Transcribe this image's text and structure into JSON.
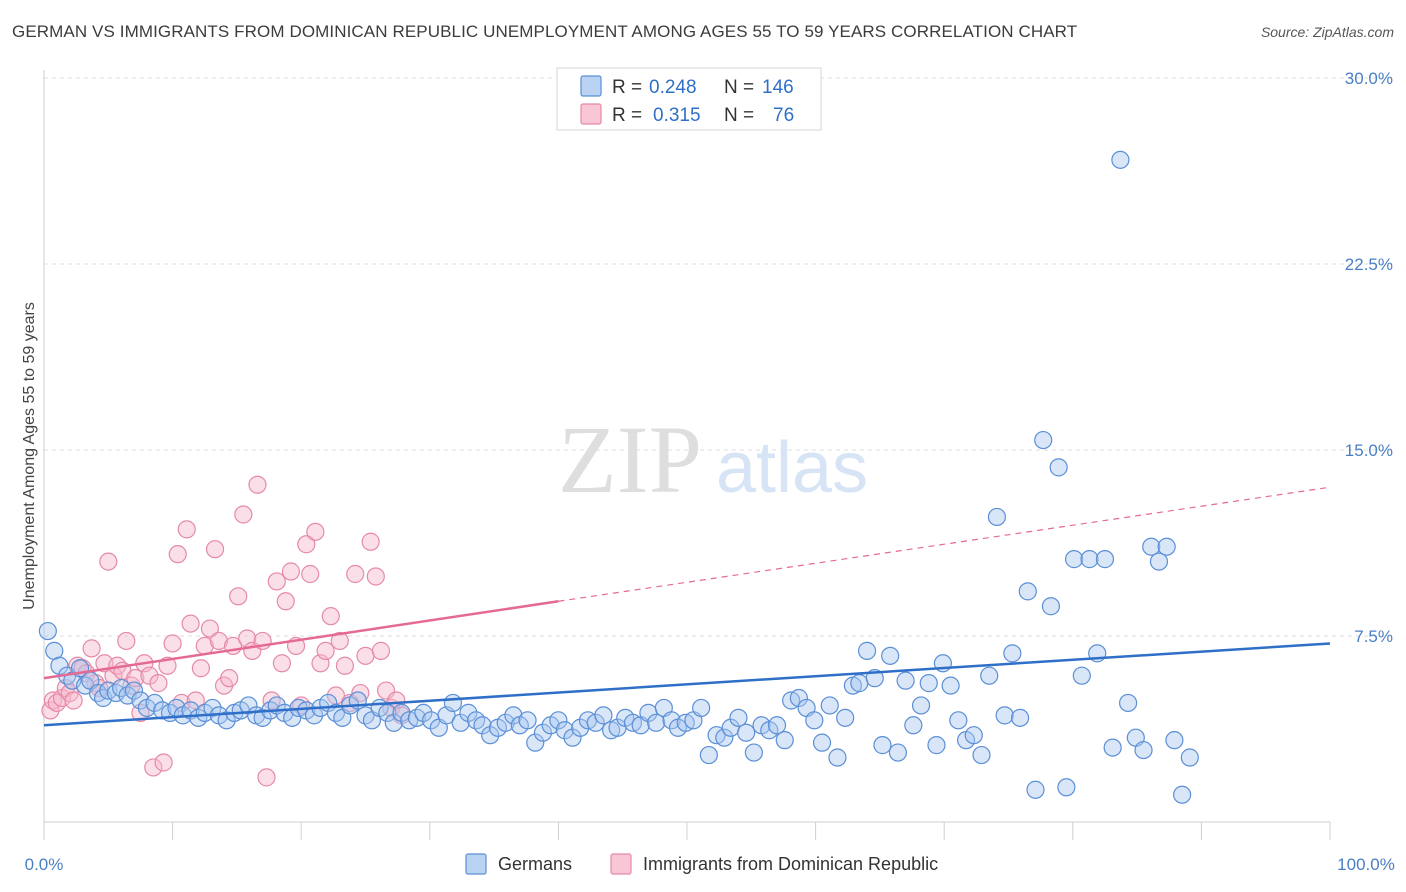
{
  "title": "GERMAN VS IMMIGRANTS FROM DOMINICAN REPUBLIC UNEMPLOYMENT AMONG AGES 55 TO 59 YEARS CORRELATION CHART",
  "source": "Source: ZipAtlas.com",
  "watermark": {
    "zip": "ZIP",
    "atlas": "atlas"
  },
  "colors": {
    "blue_fill": "#a9c8f0",
    "blue_stroke": "#5b8fd6",
    "blue_line": "#2f6fc8",
    "pink_fill": "#f6b8cb",
    "pink_stroke": "#e58aa7",
    "pink_line": "#e56a93",
    "axis_label": "#4a7fc4",
    "grid": "#dddddd"
  },
  "legend": {
    "r_label": "R =",
    "n_label": "N =",
    "items": [
      {
        "r": "0.248",
        "n": "146"
      },
      {
        "r": "0.315",
        "n": "76"
      }
    ]
  },
  "bottom_legend": [
    "Germans",
    "Immigrants from Dominican Republic"
  ],
  "chart_data": {
    "type": "scatter",
    "xlabel": "",
    "ylabel": "Unemployment Among Ages 55 to 59 years",
    "xlim": [
      0,
      100
    ],
    "ylim": [
      0,
      30
    ],
    "x_tick_labels": [
      "0.0%",
      "100.0%"
    ],
    "y_ticks": [
      7.5,
      15.0,
      22.5,
      30.0
    ],
    "y_tick_labels": [
      "7.5%",
      "15.0%",
      "22.5%",
      "30.0%"
    ],
    "grid": true,
    "series": [
      {
        "name": "Germans",
        "trend": {
          "x": [
            0,
            100
          ],
          "y": [
            3.9,
            7.2
          ],
          "dashed_x": null
        },
        "points": [
          [
            0.3,
            7.7
          ],
          [
            0.8,
            6.9
          ],
          [
            1.2,
            6.3
          ],
          [
            1.8,
            5.9
          ],
          [
            2.2,
            5.7
          ],
          [
            2.8,
            6.2
          ],
          [
            3.2,
            5.5
          ],
          [
            3.6,
            5.7
          ],
          [
            4.2,
            5.2
          ],
          [
            4.6,
            5.0
          ],
          [
            5.0,
            5.3
          ],
          [
            5.6,
            5.2
          ],
          [
            6.0,
            5.4
          ],
          [
            6.5,
            5.1
          ],
          [
            7.0,
            5.3
          ],
          [
            7.5,
            4.9
          ],
          [
            8.0,
            4.6
          ],
          [
            8.6,
            4.8
          ],
          [
            9.2,
            4.5
          ],
          [
            9.8,
            4.4
          ],
          [
            10.3,
            4.6
          ],
          [
            10.8,
            4.3
          ],
          [
            11.4,
            4.5
          ],
          [
            12.0,
            4.2
          ],
          [
            12.5,
            4.4
          ],
          [
            13.1,
            4.6
          ],
          [
            13.6,
            4.3
          ],
          [
            14.2,
            4.1
          ],
          [
            14.8,
            4.4
          ],
          [
            15.3,
            4.5
          ],
          [
            15.9,
            4.7
          ],
          [
            16.5,
            4.3
          ],
          [
            17.0,
            4.2
          ],
          [
            17.6,
            4.5
          ],
          [
            18.1,
            4.7
          ],
          [
            18.7,
            4.4
          ],
          [
            19.3,
            4.2
          ],
          [
            19.8,
            4.6
          ],
          [
            20.4,
            4.5
          ],
          [
            21.0,
            4.3
          ],
          [
            21.5,
            4.6
          ],
          [
            22.1,
            4.8
          ],
          [
            22.7,
            4.4
          ],
          [
            23.2,
            4.2
          ],
          [
            23.8,
            4.7
          ],
          [
            24.4,
            4.9
          ],
          [
            25.0,
            4.3
          ],
          [
            25.5,
            4.1
          ],
          [
            26.1,
            4.6
          ],
          [
            26.7,
            4.4
          ],
          [
            27.2,
            4.0
          ],
          [
            27.8,
            4.4
          ],
          [
            28.4,
            4.1
          ],
          [
            29.0,
            4.2
          ],
          [
            29.5,
            4.4
          ],
          [
            30.1,
            4.1
          ],
          [
            30.7,
            3.8
          ],
          [
            31.3,
            4.3
          ],
          [
            31.8,
            4.8
          ],
          [
            32.4,
            4.0
          ],
          [
            33.0,
            4.4
          ],
          [
            33.6,
            4.1
          ],
          [
            34.1,
            3.9
          ],
          [
            34.7,
            3.5
          ],
          [
            35.3,
            3.8
          ],
          [
            35.9,
            4.0
          ],
          [
            36.5,
            4.3
          ],
          [
            37.0,
            3.9
          ],
          [
            37.6,
            4.1
          ],
          [
            38.2,
            3.2
          ],
          [
            38.8,
            3.6
          ],
          [
            39.4,
            3.9
          ],
          [
            40.0,
            4.1
          ],
          [
            40.5,
            3.7
          ],
          [
            41.1,
            3.4
          ],
          [
            41.7,
            3.8
          ],
          [
            42.3,
            4.1
          ],
          [
            42.9,
            4.0
          ],
          [
            43.5,
            4.3
          ],
          [
            44.1,
            3.7
          ],
          [
            44.6,
            3.8
          ],
          [
            45.2,
            4.2
          ],
          [
            45.8,
            4.0
          ],
          [
            46.4,
            3.9
          ],
          [
            47.0,
            4.4
          ],
          [
            47.6,
            4.0
          ],
          [
            48.2,
            4.6
          ],
          [
            48.8,
            4.1
          ],
          [
            49.3,
            3.8
          ],
          [
            49.9,
            4.0
          ],
          [
            50.5,
            4.1
          ],
          [
            51.1,
            4.6
          ],
          [
            51.7,
            2.7
          ],
          [
            52.3,
            3.5
          ],
          [
            52.9,
            3.4
          ],
          [
            53.4,
            3.8
          ],
          [
            54.0,
            4.2
          ],
          [
            54.6,
            3.6
          ],
          [
            55.2,
            2.8
          ],
          [
            55.8,
            3.9
          ],
          [
            56.4,
            3.7
          ],
          [
            57.0,
            3.9
          ],
          [
            57.6,
            3.3
          ],
          [
            58.1,
            4.9
          ],
          [
            58.7,
            5.0
          ],
          [
            59.3,
            4.6
          ],
          [
            59.9,
            4.1
          ],
          [
            60.5,
            3.2
          ],
          [
            61.1,
            4.7
          ],
          [
            61.7,
            2.6
          ],
          [
            62.3,
            4.2
          ],
          [
            62.9,
            5.5
          ],
          [
            63.4,
            5.6
          ],
          [
            64.0,
            6.9
          ],
          [
            64.6,
            5.8
          ],
          [
            65.2,
            3.1
          ],
          [
            65.8,
            6.7
          ],
          [
            66.4,
            2.8
          ],
          [
            67.0,
            5.7
          ],
          [
            67.6,
            3.9
          ],
          [
            68.2,
            4.7
          ],
          [
            68.8,
            5.6
          ],
          [
            69.4,
            3.1
          ],
          [
            69.9,
            6.4
          ],
          [
            70.5,
            5.5
          ],
          [
            71.1,
            4.1
          ],
          [
            71.7,
            3.3
          ],
          [
            72.3,
            3.5
          ],
          [
            72.9,
            2.7
          ],
          [
            73.5,
            5.9
          ],
          [
            74.1,
            12.3
          ],
          [
            74.7,
            4.3
          ],
          [
            75.3,
            6.8
          ],
          [
            75.9,
            4.2
          ],
          [
            76.5,
            9.3
          ],
          [
            77.1,
            1.3
          ],
          [
            77.7,
            15.4
          ],
          [
            78.3,
            8.7
          ],
          [
            78.9,
            14.3
          ],
          [
            79.5,
            1.4
          ],
          [
            80.1,
            10.6
          ],
          [
            80.7,
            5.9
          ],
          [
            81.3,
            10.6
          ],
          [
            81.9,
            6.8
          ],
          [
            82.5,
            10.6
          ],
          [
            83.1,
            3.0
          ],
          [
            83.7,
            26.7
          ],
          [
            84.3,
            4.8
          ],
          [
            84.9,
            3.4
          ],
          [
            85.5,
            2.9
          ],
          [
            86.1,
            11.1
          ],
          [
            86.7,
            10.5
          ],
          [
            87.3,
            11.1
          ],
          [
            87.9,
            3.3
          ],
          [
            88.5,
            1.1
          ],
          [
            89.1,
            2.6
          ]
        ]
      },
      {
        "name": "Immigrants from Dominican Republic",
        "trend": {
          "x": [
            0,
            40
          ],
          "y": [
            5.8,
            8.9
          ],
          "dashed_x": [
            40,
            100
          ],
          "dashed_y": [
            8.9,
            13.5
          ]
        },
        "points": [
          [
            0.5,
            4.5
          ],
          [
            0.7,
            4.9
          ],
          [
            1.0,
            4.8
          ],
          [
            1.4,
            5.0
          ],
          [
            1.7,
            5.4
          ],
          [
            2.0,
            5.2
          ],
          [
            2.3,
            4.9
          ],
          [
            2.6,
            6.3
          ],
          [
            3.0,
            6.2
          ],
          [
            3.3,
            6.0
          ],
          [
            3.7,
            7.0
          ],
          [
            4.0,
            5.6
          ],
          [
            4.3,
            5.4
          ],
          [
            4.7,
            6.4
          ],
          [
            5.0,
            10.5
          ],
          [
            5.4,
            5.9
          ],
          [
            5.7,
            6.3
          ],
          [
            6.1,
            6.1
          ],
          [
            6.4,
            7.3
          ],
          [
            6.8,
            5.5
          ],
          [
            7.1,
            5.8
          ],
          [
            7.5,
            4.4
          ],
          [
            7.8,
            6.4
          ],
          [
            8.2,
            5.9
          ],
          [
            8.5,
            2.2
          ],
          [
            8.9,
            5.6
          ],
          [
            9.3,
            2.4
          ],
          [
            9.6,
            6.3
          ],
          [
            10.0,
            7.2
          ],
          [
            10.4,
            10.8
          ],
          [
            10.7,
            4.8
          ],
          [
            11.1,
            11.8
          ],
          [
            11.4,
            8.0
          ],
          [
            11.8,
            4.9
          ],
          [
            12.2,
            6.2
          ],
          [
            12.5,
            7.1
          ],
          [
            12.9,
            7.8
          ],
          [
            13.3,
            11.0
          ],
          [
            13.6,
            7.3
          ],
          [
            14.0,
            5.5
          ],
          [
            14.4,
            5.8
          ],
          [
            14.7,
            7.1
          ],
          [
            15.1,
            9.1
          ],
          [
            15.5,
            12.4
          ],
          [
            15.8,
            7.4
          ],
          [
            16.2,
            6.9
          ],
          [
            16.6,
            13.6
          ],
          [
            17.0,
            7.3
          ],
          [
            17.3,
            1.8
          ],
          [
            17.7,
            4.9
          ],
          [
            18.1,
            9.7
          ],
          [
            18.5,
            6.4
          ],
          [
            18.8,
            8.9
          ],
          [
            19.2,
            10.1
          ],
          [
            19.6,
            7.1
          ],
          [
            20.0,
            4.7
          ],
          [
            20.4,
            11.2
          ],
          [
            20.7,
            10.0
          ],
          [
            21.1,
            11.7
          ],
          [
            21.5,
            6.4
          ],
          [
            21.9,
            6.9
          ],
          [
            22.3,
            8.3
          ],
          [
            22.7,
            5.1
          ],
          [
            23.0,
            7.3
          ],
          [
            23.4,
            6.3
          ],
          [
            23.8,
            4.8
          ],
          [
            24.2,
            10.0
          ],
          [
            24.6,
            5.2
          ],
          [
            25.0,
            6.7
          ],
          [
            25.4,
            11.3
          ],
          [
            25.8,
            9.9
          ],
          [
            26.2,
            6.9
          ],
          [
            26.6,
            5.3
          ],
          [
            27.0,
            4.6
          ],
          [
            27.4,
            4.9
          ],
          [
            27.8,
            4.3
          ]
        ]
      }
    ]
  }
}
